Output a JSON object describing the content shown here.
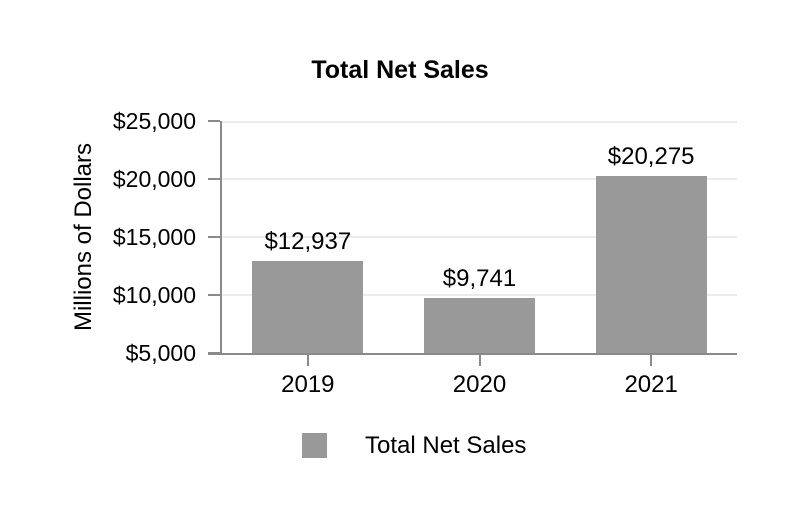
{
  "chart_data": {
    "type": "bar",
    "title": "Total Net Sales",
    "ylabel": "Millions of Dollars",
    "xlabel": "",
    "categories": [
      "2019",
      "2020",
      "2021"
    ],
    "values": [
      12937,
      9741,
      20275
    ],
    "value_labels": [
      "$12,937",
      "$9,741",
      "$20,275"
    ],
    "ylim": [
      5000,
      25000
    ],
    "yticks": [
      5000,
      10000,
      15000,
      20000,
      25000
    ],
    "ytick_labels": [
      "$5,000",
      "$10,000",
      "$15,000",
      "$20,000",
      "$25,000"
    ],
    "grid": true,
    "legend": {
      "position": "bottom",
      "entries": [
        {
          "label": "Total Net Sales",
          "swatch_icon": "gray-square-swatch"
        }
      ]
    },
    "colors": {
      "bar": "#999999",
      "axis": "#8a8a8a",
      "gridline": "#ebebeb",
      "text": "#000000",
      "background": "#ffffff"
    }
  }
}
